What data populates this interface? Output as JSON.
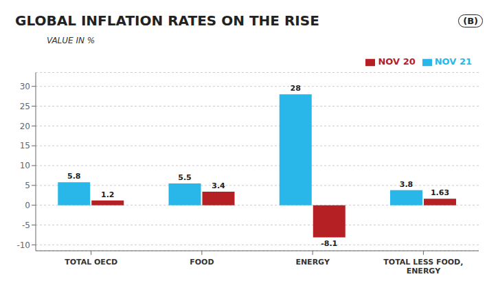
{
  "chart_data": {
    "type": "bar",
    "title": "GLOBAL INFLATION RATES ON THE RISE",
    "subtitle": "VALUE IN %",
    "annotations": [
      "(B)"
    ],
    "categories": [
      "TOTAL OECD",
      "FOOD",
      "ENERGY",
      "TOTAL LESS FOOD,\nENERGY"
    ],
    "series": [
      {
        "name": "NOV 21",
        "color": "#29b6e8",
        "values": [
          5.8,
          5.5,
          28,
          3.8
        ]
      },
      {
        "name": "NOV 20",
        "color": "#b52025",
        "values": [
          1.2,
          3.4,
          -8.1,
          1.63
        ]
      }
    ],
    "ylim": [
      -11.5,
      33.5
    ],
    "yticks": [
      -10,
      -5,
      0,
      5,
      10,
      15,
      20,
      25,
      30
    ],
    "grid": true,
    "legend": "upper right",
    "data_labels": true
  }
}
